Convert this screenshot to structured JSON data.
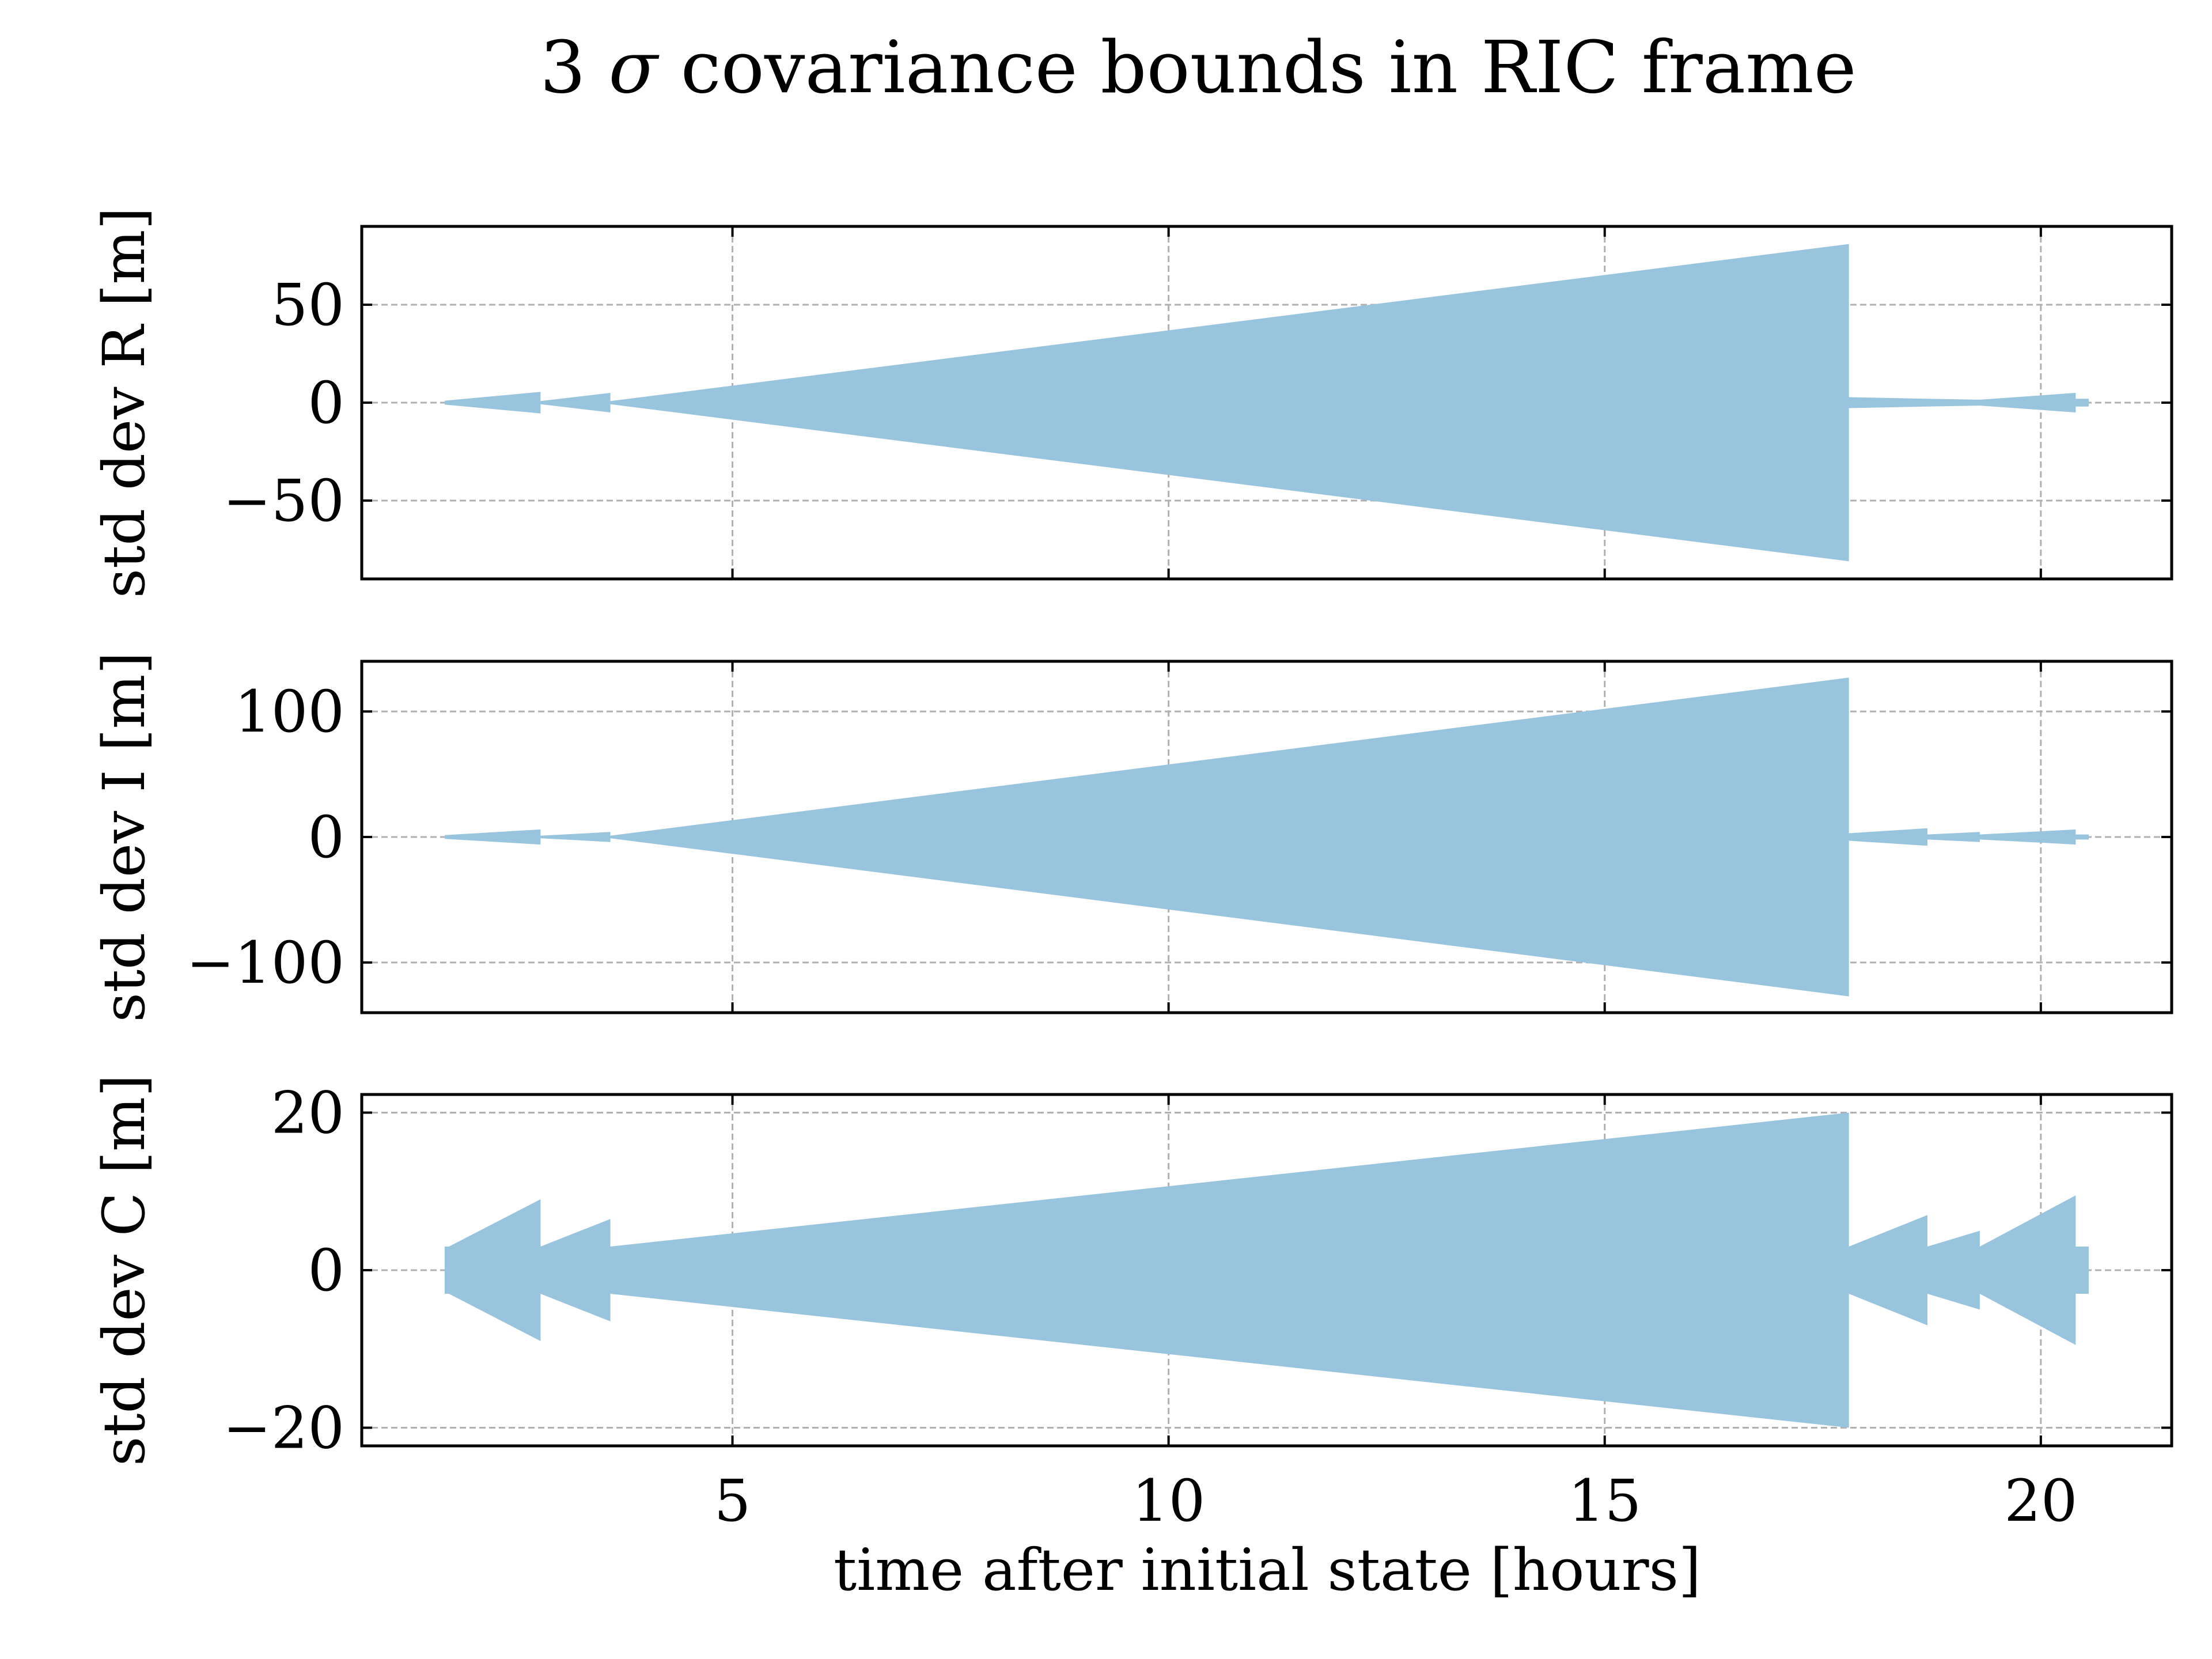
{
  "figure": {
    "title_prefix": "3",
    "title_symbol": "σ",
    "title_rest": "covariance bounds in RIC frame",
    "xlabel": "time after initial state [hours]",
    "background": "#ffffff"
  },
  "chart_data": [
    {
      "type": "area",
      "title": "3 σ covariance bounds in RIC frame",
      "xlabel": "",
      "ylabel": "std dev R [m]",
      "xlim": [
        0.75,
        21.5
      ],
      "ylim": [
        -90,
        90
      ],
      "xticks": [
        5,
        10,
        15,
        20
      ],
      "yticks": [
        -50,
        0,
        50
      ],
      "ytick_labels": [
        "−50",
        "0",
        "50"
      ],
      "grid": true,
      "fill_color": "#99c4dd",
      "x": [
        1.7,
        2.8,
        2.8,
        3.6,
        3.6,
        17.8,
        17.8,
        18.7,
        19.3,
        20.4,
        20.4,
        20.55
      ],
      "upper": [
        1,
        5.5,
        0.8,
        5,
        0.8,
        81,
        2.8,
        2,
        1.5,
        5,
        2,
        2
      ],
      "lower": [
        -1,
        -5.5,
        -0.8,
        -5,
        -0.8,
        -81,
        -2.8,
        -2,
        -1.5,
        -5,
        -2,
        -2
      ]
    },
    {
      "type": "area",
      "xlabel": "",
      "ylabel": "std dev I [m]",
      "xlim": [
        0.75,
        21.5
      ],
      "ylim": [
        -140,
        140
      ],
      "xticks": [
        5,
        10,
        15,
        20
      ],
      "yticks": [
        -100,
        0,
        100
      ],
      "ytick_labels": [
        "−100",
        "0",
        "100"
      ],
      "grid": true,
      "fill_color": "#99c4dd",
      "x": [
        1.7,
        2.8,
        2.8,
        3.6,
        3.6,
        17.8,
        17.8,
        18.7,
        18.7,
        19.3,
        19.3,
        20.4,
        20.4,
        20.55
      ],
      "upper": [
        1.5,
        6,
        1,
        4,
        1,
        127,
        3,
        7,
        2,
        4,
        2,
        6,
        2,
        2
      ],
      "lower": [
        -1.5,
        -6,
        -1,
        -4,
        -1,
        -127,
        -3,
        -7,
        -2,
        -4,
        -2,
        -6,
        -2,
        -2
      ]
    },
    {
      "type": "area",
      "xlabel": "time after initial state [hours]",
      "ylabel": "std dev C [m]",
      "xlim": [
        0.75,
        21.5
      ],
      "ylim": [
        -22.3,
        22.3
      ],
      "xticks": [
        5,
        10,
        15,
        20
      ],
      "xtick_labels": [
        "5",
        "10",
        "15",
        "20"
      ],
      "yticks": [
        -20,
        0,
        20
      ],
      "ytick_labels": [
        "−20",
        "0",
        "20"
      ],
      "grid": true,
      "fill_color": "#99c4dd",
      "x": [
        1.7,
        1.75,
        2.8,
        2.8,
        3.6,
        3.6,
        17.8,
        17.8,
        18.7,
        18.7,
        19.3,
        19.3,
        20.4,
        20.4,
        20.55
      ],
      "upper": [
        3,
        3,
        9,
        3,
        6.5,
        3,
        20,
        3,
        7,
        3,
        5,
        3,
        9.5,
        3,
        3
      ],
      "lower": [
        -3,
        -3,
        -9,
        -3,
        -6.5,
        -3,
        -20,
        -3,
        -7,
        -3,
        -5,
        -3,
        -9.5,
        -3,
        -3
      ]
    }
  ]
}
